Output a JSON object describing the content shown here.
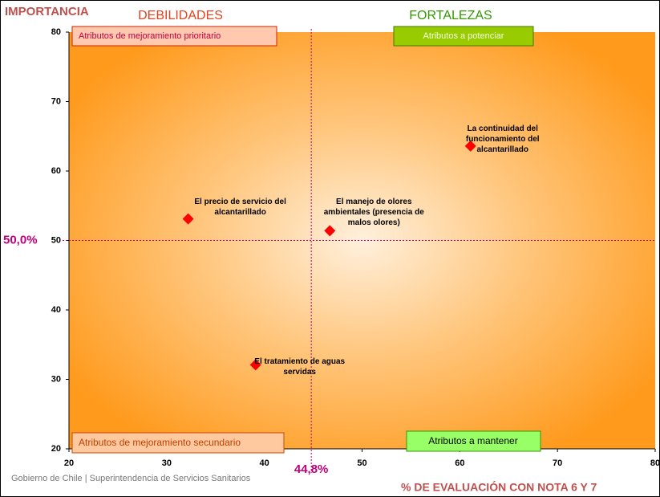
{
  "chart_data": {
    "type": "scatter",
    "y_label": "IMPORTANCIA",
    "x_label": "% DE EVALUACIÓN CON NOTA 6 Y 7",
    "quadrant_titles": [
      "DEBILIDADES",
      "FORTALEZAS"
    ],
    "quadrant_boxes": [
      "Atributos de mejoramiento prioritario",
      "Atributos a potenciar",
      "Atributos de mejoramiento secundario",
      "Atributos a mantener"
    ],
    "footer": "Gobierno de Chile | Superintendencia de Servicios Sanitarios",
    "x": [
      32.2,
      46.7,
      61.1,
      39.1
    ],
    "values": [
      53.1,
      51.4,
      63.6,
      32.1
    ],
    "labels": [
      "El precio de servicio del alcantarillado",
      "El manejo de olores ambientales (presencia de malos olores)",
      "La continuidad del funcionamiento del alcantarillado",
      "El tratamiento de aguas servidas"
    ],
    "color": "#ff0000",
    "xlim": [
      20,
      80
    ],
    "xticks": [
      20,
      30,
      40,
      50,
      60,
      70,
      80
    ],
    "ylim": [
      20,
      80
    ],
    "yticks": [
      20,
      30,
      40,
      50,
      60,
      70,
      80
    ],
    "x_reference": {
      "value": 44.8,
      "label": "44,8%"
    },
    "y_reference": {
      "value": 50,
      "label": "50,0%"
    },
    "reference_color": "#c0007a"
  }
}
